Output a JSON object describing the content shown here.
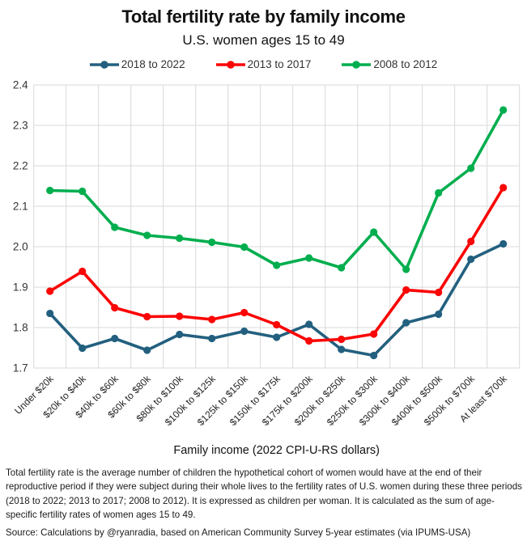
{
  "header": {
    "title": "Total fertility rate by family income",
    "subtitle": "U.S. women ages 15 to 49"
  },
  "chart_data": {
    "type": "line",
    "title": "Total fertility rate by family income",
    "subtitle": "U.S. women ages 15 to 49",
    "categories": [
      "Under $20k",
      "$20k to $40k",
      "$40k to $60k",
      "$60k to $80k",
      "$80k to $100k",
      "$100k to $125k",
      "$125k to $150k",
      "$150k to $175k",
      "$175k to $200k",
      "$200k to $250k",
      "$250k to $300k",
      "$300k to $400k",
      "$400k to $500k",
      "$500k to $700k",
      "At least $700k"
    ],
    "series": [
      {
        "name": "2018 to 2022",
        "color": "#23607F",
        "values": [
          1.835,
          1.749,
          1.773,
          1.744,
          1.783,
          1.773,
          1.791,
          1.776,
          1.808,
          1.746,
          1.731,
          1.812,
          1.833,
          1.969,
          2.007
        ]
      },
      {
        "name": "2013 to 2017",
        "color": "#FB0505",
        "values": [
          1.89,
          1.939,
          1.849,
          1.827,
          1.828,
          1.82,
          1.837,
          1.807,
          1.767,
          1.771,
          1.784,
          1.893,
          1.887,
          2.013,
          2.146
        ]
      },
      {
        "name": "2008 to 2012",
        "color": "#00AE4E",
        "values": [
          2.139,
          2.137,
          2.048,
          2.028,
          2.021,
          2.011,
          1.999,
          1.954,
          1.972,
          1.948,
          2.036,
          1.944,
          2.133,
          2.194,
          2.338
        ]
      }
    ],
    "xlabel": "Family income (2022 CPI-U-RS dollars)",
    "ylabel": "",
    "ylim": [
      1.7,
      2.4
    ],
    "ytick_step": 0.1,
    "grid": true,
    "gridline_color": "#D9D9D9",
    "legend_position": "top"
  },
  "footnote": {
    "definition": "Total fertility rate is the average number of children the hypothetical cohort of women would have at the end of their reproductive period if they were subject during their whole lives to the fertility rates of U.S. women during these three periods (2018 to 2022; 2013 to 2017; 2008 to 2012). It is expressed as children per woman. It is calculated as the sum of age-specific fertility rates of women ages 15 to 49.",
    "source": "Source: Calculations by @ryanradia, based on American Community Survey 5-year estimates (via IPUMS-USA)"
  }
}
